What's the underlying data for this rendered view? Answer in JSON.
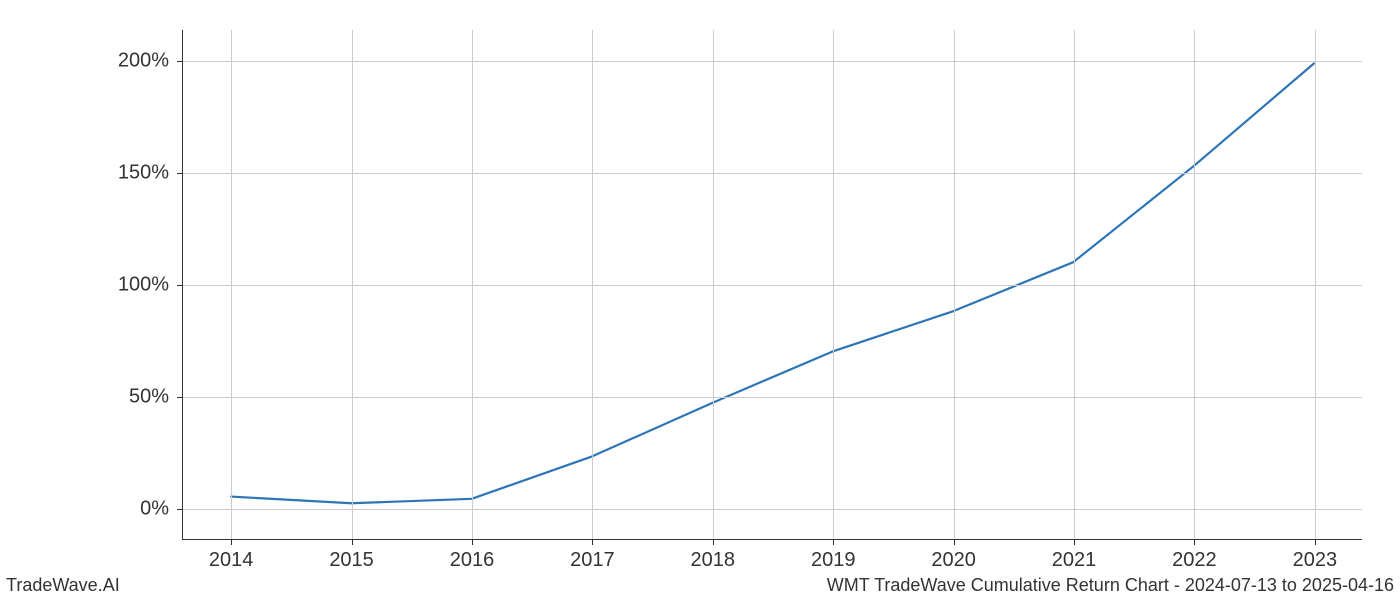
{
  "chart": {
    "type": "line",
    "background_color": "#ffffff",
    "grid_color": "#cccccc",
    "axis_color": "#333333",
    "line_color": "#2e75b6",
    "line_width": 2.2,
    "xlim": [
      2013.6,
      2023.4
    ],
    "ylim": [
      -14,
      214
    ],
    "x_ticks": [
      2014,
      2015,
      2016,
      2017,
      2018,
      2019,
      2020,
      2021,
      2022,
      2023
    ],
    "x_tick_labels": [
      "2014",
      "2015",
      "2016",
      "2017",
      "2018",
      "2019",
      "2020",
      "2021",
      "2022",
      "2023"
    ],
    "y_ticks": [
      0,
      50,
      100,
      150,
      200
    ],
    "y_tick_labels": [
      "0%",
      "50%",
      "100%",
      "150%",
      "200%"
    ],
    "tick_fontsize": 20,
    "data": {
      "x": [
        2014,
        2015,
        2016,
        2017,
        2018,
        2019,
        2020,
        2021,
        2022,
        2023
      ],
      "y": [
        5,
        2,
        4,
        23,
        47,
        70,
        88,
        110,
        153,
        199
      ]
    }
  },
  "footer": {
    "left": "TradeWave.AI",
    "right": "WMT TradeWave Cumulative Return Chart - 2024-07-13 to 2025-04-16",
    "fontsize": 18,
    "color": "#333333"
  }
}
